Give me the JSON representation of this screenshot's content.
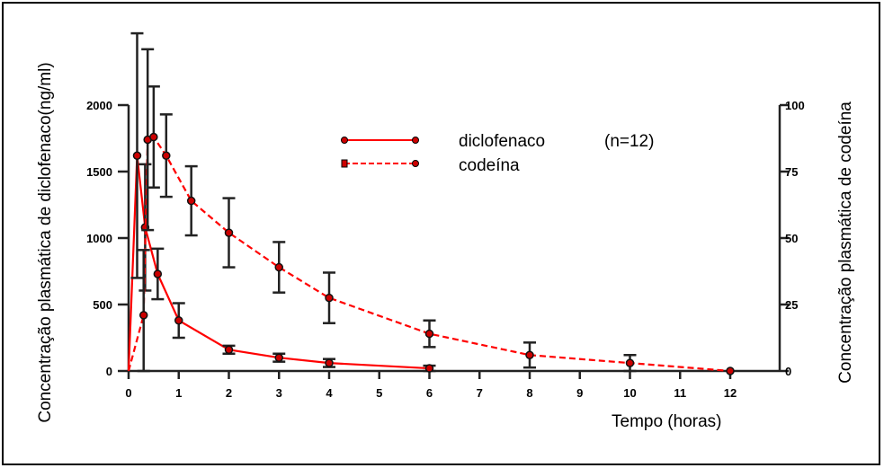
{
  "chart_data": {
    "type": "line",
    "xlabel": "Tempo (horas)",
    "ylabel_left": "Concentração plasmática de diclofenaco(ng/ml)",
    "ylabel_right": "Concentração plasmática de codeína",
    "xlim": [
      0,
      12
    ],
    "xticks": [
      "0",
      "1",
      "2",
      "3",
      "4",
      "5",
      "6",
      "7",
      "8",
      "9",
      "10",
      "11",
      "12"
    ],
    "ylim_left": [
      0,
      2000
    ],
    "yticks_left": [
      "0",
      "500",
      "1000",
      "1500",
      "2000"
    ],
    "ylim_right": [
      0,
      100
    ],
    "yticks_right": [
      "0",
      "25",
      "50",
      "75",
      "100"
    ],
    "grid": false,
    "legend_position": "top-center",
    "legend_note": "(n=12)",
    "series": [
      {
        "name": "diclofenaco",
        "axis": "left",
        "style": "solid",
        "color": "#ff0000",
        "x": [
          0,
          0.17,
          0.33,
          0.58,
          1,
          2,
          3,
          4,
          6
        ],
        "y": [
          0,
          1620,
          1080,
          730,
          380,
          160,
          100,
          60,
          20
        ],
        "err": [
          0,
          920,
          475,
          190,
          130,
          30,
          30,
          30,
          20
        ]
      },
      {
        "name": "codeína",
        "axis": "right",
        "style": "dashed",
        "color": "#ff0000",
        "x": [
          0,
          0.3,
          0.38,
          0.5,
          0.75,
          1.25,
          2,
          3,
          4,
          6,
          8,
          10,
          12
        ],
        "y": [
          0,
          21,
          87,
          88,
          81,
          64,
          52,
          39,
          27.5,
          14,
          6,
          3,
          0
        ],
        "err": [
          0,
          24.5,
          34,
          19,
          15.5,
          13,
          13,
          9.5,
          9.5,
          5,
          4.7,
          3,
          0
        ]
      }
    ]
  }
}
